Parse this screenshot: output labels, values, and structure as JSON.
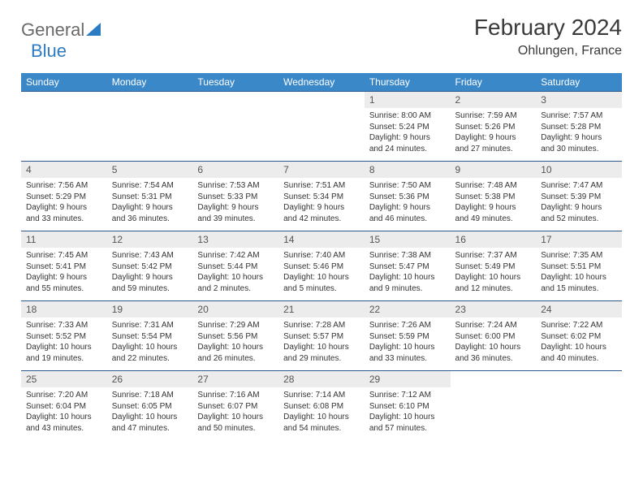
{
  "logo": {
    "general": "General",
    "blue": "Blue"
  },
  "title": "February 2024",
  "location": "Ohlungen, France",
  "colors": {
    "header_bg": "#3b88c9",
    "header_text": "#ffffff",
    "daynum_bg": "#ececec",
    "border": "#2b5a8a"
  },
  "day_headers": [
    "Sunday",
    "Monday",
    "Tuesday",
    "Wednesday",
    "Thursday",
    "Friday",
    "Saturday"
  ],
  "weeks": [
    [
      null,
      null,
      null,
      null,
      {
        "n": "1",
        "sr": "8:00 AM",
        "ss": "5:24 PM",
        "dl": "9 hours and 24 minutes."
      },
      {
        "n": "2",
        "sr": "7:59 AM",
        "ss": "5:26 PM",
        "dl": "9 hours and 27 minutes."
      },
      {
        "n": "3",
        "sr": "7:57 AM",
        "ss": "5:28 PM",
        "dl": "9 hours and 30 minutes."
      }
    ],
    [
      {
        "n": "4",
        "sr": "7:56 AM",
        "ss": "5:29 PM",
        "dl": "9 hours and 33 minutes."
      },
      {
        "n": "5",
        "sr": "7:54 AM",
        "ss": "5:31 PM",
        "dl": "9 hours and 36 minutes."
      },
      {
        "n": "6",
        "sr": "7:53 AM",
        "ss": "5:33 PM",
        "dl": "9 hours and 39 minutes."
      },
      {
        "n": "7",
        "sr": "7:51 AM",
        "ss": "5:34 PM",
        "dl": "9 hours and 42 minutes."
      },
      {
        "n": "8",
        "sr": "7:50 AM",
        "ss": "5:36 PM",
        "dl": "9 hours and 46 minutes."
      },
      {
        "n": "9",
        "sr": "7:48 AM",
        "ss": "5:38 PM",
        "dl": "9 hours and 49 minutes."
      },
      {
        "n": "10",
        "sr": "7:47 AM",
        "ss": "5:39 PM",
        "dl": "9 hours and 52 minutes."
      }
    ],
    [
      {
        "n": "11",
        "sr": "7:45 AM",
        "ss": "5:41 PM",
        "dl": "9 hours and 55 minutes."
      },
      {
        "n": "12",
        "sr": "7:43 AM",
        "ss": "5:42 PM",
        "dl": "9 hours and 59 minutes."
      },
      {
        "n": "13",
        "sr": "7:42 AM",
        "ss": "5:44 PM",
        "dl": "10 hours and 2 minutes."
      },
      {
        "n": "14",
        "sr": "7:40 AM",
        "ss": "5:46 PM",
        "dl": "10 hours and 5 minutes."
      },
      {
        "n": "15",
        "sr": "7:38 AM",
        "ss": "5:47 PM",
        "dl": "10 hours and 9 minutes."
      },
      {
        "n": "16",
        "sr": "7:37 AM",
        "ss": "5:49 PM",
        "dl": "10 hours and 12 minutes."
      },
      {
        "n": "17",
        "sr": "7:35 AM",
        "ss": "5:51 PM",
        "dl": "10 hours and 15 minutes."
      }
    ],
    [
      {
        "n": "18",
        "sr": "7:33 AM",
        "ss": "5:52 PM",
        "dl": "10 hours and 19 minutes."
      },
      {
        "n": "19",
        "sr": "7:31 AM",
        "ss": "5:54 PM",
        "dl": "10 hours and 22 minutes."
      },
      {
        "n": "20",
        "sr": "7:29 AM",
        "ss": "5:56 PM",
        "dl": "10 hours and 26 minutes."
      },
      {
        "n": "21",
        "sr": "7:28 AM",
        "ss": "5:57 PM",
        "dl": "10 hours and 29 minutes."
      },
      {
        "n": "22",
        "sr": "7:26 AM",
        "ss": "5:59 PM",
        "dl": "10 hours and 33 minutes."
      },
      {
        "n": "23",
        "sr": "7:24 AM",
        "ss": "6:00 PM",
        "dl": "10 hours and 36 minutes."
      },
      {
        "n": "24",
        "sr": "7:22 AM",
        "ss": "6:02 PM",
        "dl": "10 hours and 40 minutes."
      }
    ],
    [
      {
        "n": "25",
        "sr": "7:20 AM",
        "ss": "6:04 PM",
        "dl": "10 hours and 43 minutes."
      },
      {
        "n": "26",
        "sr": "7:18 AM",
        "ss": "6:05 PM",
        "dl": "10 hours and 47 minutes."
      },
      {
        "n": "27",
        "sr": "7:16 AM",
        "ss": "6:07 PM",
        "dl": "10 hours and 50 minutes."
      },
      {
        "n": "28",
        "sr": "7:14 AM",
        "ss": "6:08 PM",
        "dl": "10 hours and 54 minutes."
      },
      {
        "n": "29",
        "sr": "7:12 AM",
        "ss": "6:10 PM",
        "dl": "10 hours and 57 minutes."
      },
      null,
      null
    ]
  ],
  "labels": {
    "sunrise": "Sunrise:",
    "sunset": "Sunset:",
    "daylight": "Daylight:"
  }
}
